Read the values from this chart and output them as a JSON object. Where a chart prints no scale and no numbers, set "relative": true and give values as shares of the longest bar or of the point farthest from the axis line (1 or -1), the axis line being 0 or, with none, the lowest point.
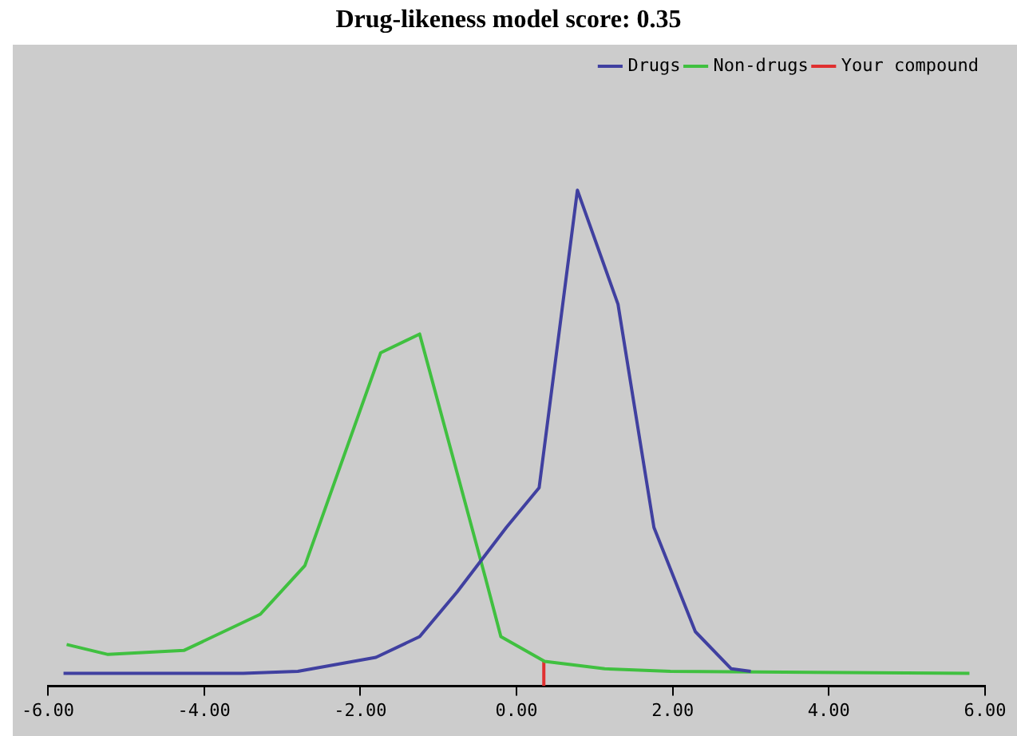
{
  "chart_data": {
    "type": "line",
    "title": "Drug-likeness model score: 0.35",
    "relative": true,
    "xlim": [
      -6,
      6
    ],
    "xticks": [
      {
        "value": -6,
        "label": "-6.00"
      },
      {
        "value": -4,
        "label": "-4.00"
      },
      {
        "value": -2,
        "label": "-2.00"
      },
      {
        "value": 0,
        "label": "0.00"
      },
      {
        "value": 2,
        "label": "2.00"
      },
      {
        "value": 4,
        "label": "4.00"
      },
      {
        "value": 6,
        "label": "6.00"
      }
    ],
    "series": [
      {
        "name": "Drugs",
        "color": "#4040a0",
        "x": [
          -5.8,
          -3.5,
          -2.8,
          -1.8,
          -1.24,
          -0.76,
          -0.13,
          0.29,
          0.78,
          1.3,
          1.76,
          2.29,
          2.75,
          3.0
        ],
        "values": [
          0.026,
          0.026,
          0.03,
          0.058,
          0.1,
          0.19,
          0.32,
          0.4,
          1.0,
          0.77,
          0.32,
          0.11,
          0.035,
          0.03
        ]
      },
      {
        "name": "Non-drugs",
        "color": "#40c040",
        "x": [
          -5.76,
          -5.23,
          -4.26,
          -3.28,
          -2.71,
          -1.74,
          -1.24,
          -0.4,
          -0.2,
          0.36,
          1.13,
          1.97,
          5.8
        ],
        "values": [
          0.084,
          0.064,
          0.072,
          0.145,
          0.243,
          0.672,
          0.71,
          0.22,
          0.1,
          0.05,
          0.035,
          0.03,
          0.026
        ]
      },
      {
        "name": "Your compound",
        "color": "#e03030",
        "x": [
          0.35,
          0.35
        ],
        "values": [
          0,
          0.05
        ]
      }
    ],
    "legend": "top right",
    "grid": false,
    "marker": "none",
    "line_style": "solid"
  }
}
